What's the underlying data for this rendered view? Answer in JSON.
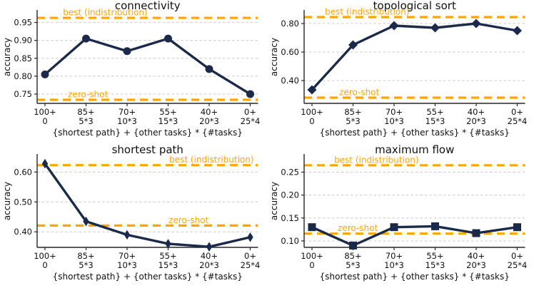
{
  "figure": {
    "background": "#ffffff",
    "rows": 2,
    "cols": 2
  },
  "colors": {
    "series_line": "#1b2a4a",
    "annotation_orange": "#ffa500",
    "gridline": "#c9c9c9",
    "spine": "#262626",
    "text": "#111111"
  },
  "chart_data": [
    {
      "type": "line",
      "title": "connectivity",
      "xlabel": "{shortest path} + {other tasks} * {#tasks}",
      "ylabel": "accuracy",
      "marker": "circle",
      "categories": [
        [
          "100+",
          "0"
        ],
        [
          "85+",
          "5*3"
        ],
        [
          "70+",
          "10*3"
        ],
        [
          "55+",
          "15*3"
        ],
        [
          "40+",
          "20*3"
        ],
        [
          "0+",
          "25*4"
        ]
      ],
      "values": [
        0.805,
        0.905,
        0.87,
        0.905,
        0.82,
        0.75
      ],
      "best_indistribution": {
        "label": "best (indistribution)",
        "value": 0.963
      },
      "zero_shot": {
        "label": "zero-shot",
        "value": 0.734
      },
      "yticks": [
        0.75,
        0.8,
        0.85,
        0.9,
        0.95
      ],
      "ytick_labels": [
        "0.75",
        "0.80",
        "0.85",
        "0.90",
        "0.95"
      ],
      "ylim": [
        0.724,
        0.983
      ],
      "grid": true,
      "layout": {
        "best_label_x": 0.117,
        "zero_label_x": 0.139
      }
    },
    {
      "type": "line",
      "title": "topological sort",
      "xlabel": "{shortest path} + {other tasks} * {#tasks}",
      "ylabel": "accuracy",
      "marker": "diamond",
      "categories": [
        [
          "100+",
          "0"
        ],
        [
          "85+",
          "5*3"
        ],
        [
          "70+",
          "10*3"
        ],
        [
          "55+",
          "15*3"
        ],
        [
          "40+",
          "20*3"
        ],
        [
          "0+",
          "25*4"
        ]
      ],
      "values": [
        0.335,
        0.65,
        0.785,
        0.77,
        0.8,
        0.75
      ],
      "best_indistribution": {
        "label": "best (indistribution)",
        "value": 0.845
      },
      "zero_shot": {
        "label": "zero-shot",
        "value": 0.28
      },
      "yticks": [
        0.4,
        0.6,
        0.8
      ],
      "ytick_labels": [
        "0.40",
        "0.60",
        "0.80"
      ],
      "ylim": [
        0.24,
        0.89
      ],
      "grid": true,
      "layout": {
        "best_label_x": 0.094,
        "zero_label_x": 0.159
      }
    },
    {
      "type": "line",
      "title": "shortest path",
      "xlabel": "{shortest path} + {other tasks} * {#tasks}",
      "ylabel": "accuracy",
      "marker": "thin-diamond",
      "categories": [
        [
          "100+",
          "0"
        ],
        [
          "85+",
          "5*3"
        ],
        [
          "70+",
          "10*3"
        ],
        [
          "55+",
          "15*3"
        ],
        [
          "40+",
          "20*3"
        ],
        [
          "0+",
          "25*4"
        ]
      ],
      "values": [
        0.628,
        0.435,
        0.39,
        0.36,
        0.35,
        0.382
      ],
      "best_indistribution": {
        "label": "best (indistribution)",
        "value": 0.623
      },
      "zero_shot": {
        "label": "zero-shot",
        "value": 0.421
      },
      "yticks": [
        0.4,
        0.5,
        0.6
      ],
      "ytick_labels": [
        "0.40",
        "0.50",
        "0.60"
      ],
      "ylim": [
        0.348,
        0.658
      ],
      "grid": true,
      "layout": {
        "best_label_x": 0.598,
        "zero_label_x": 0.595
      }
    },
    {
      "type": "line",
      "title": "maximum flow",
      "xlabel": "{shortest path} + {other tasks} * {#tasks}",
      "ylabel": "accuracy",
      "marker": "square",
      "categories": [
        [
          "100+",
          "0"
        ],
        [
          "85+",
          "5*3"
        ],
        [
          "70+",
          "10*3"
        ],
        [
          "55+",
          "15*3"
        ],
        [
          "40+",
          "20*3"
        ],
        [
          "0+",
          "25*4"
        ]
      ],
      "values": [
        0.13,
        0.09,
        0.13,
        0.132,
        0.117,
        0.13
      ],
      "best_indistribution": {
        "label": "best (indistribution)",
        "value": 0.265
      },
      "zero_shot": {
        "label": "zero-shot",
        "value": 0.116
      },
      "yticks": [
        0.1,
        0.15,
        0.2,
        0.25
      ],
      "ytick_labels": [
        "0.10",
        "0.15",
        "0.20",
        "0.25"
      ],
      "ylim": [
        0.086,
        0.288
      ],
      "grid": true,
      "layout": {
        "best_label_x": 0.136,
        "zero_label_x": 0.152
      }
    }
  ]
}
